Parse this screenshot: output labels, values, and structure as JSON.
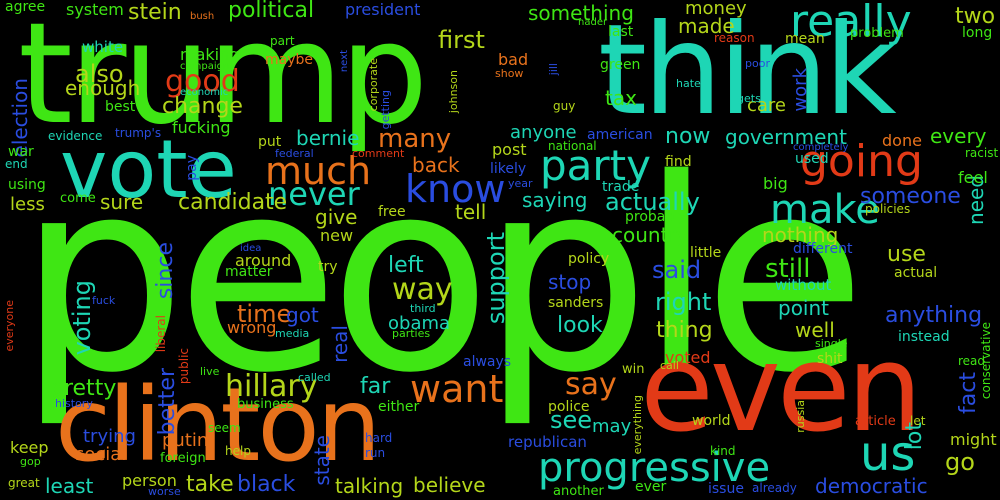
{
  "colors": {
    "background": "#000000",
    "palette": [
      "#3fe614",
      "#1ed6b5",
      "#e8721c",
      "#e23a17",
      "#2a4de0",
      "#b4d61a"
    ]
  },
  "words": [
    {
      "text": "people",
      "color": "#3fe614"
    },
    {
      "text": "trump",
      "color": "#3fe614"
    },
    {
      "text": "think",
      "color": "#1ed6b5"
    },
    {
      "text": "vote",
      "color": "#1ed6b5"
    },
    {
      "text": "even",
      "color": "#e23a17"
    },
    {
      "text": "clinton",
      "color": "#e8721c"
    },
    {
      "text": "progressive",
      "color": "#1ed6b5"
    },
    {
      "text": "party",
      "color": "#1ed6b5"
    },
    {
      "text": "much",
      "color": "#e8721c"
    },
    {
      "text": "never",
      "color": "#1ed6b5"
    },
    {
      "text": "know",
      "color": "#2a4de0"
    },
    {
      "text": "going",
      "color": "#e23a17"
    },
    {
      "text": "really",
      "color": "#1ed6b5"
    },
    {
      "text": "make",
      "color": "#1ed6b5"
    },
    {
      "text": "us",
      "color": "#1ed6b5"
    },
    {
      "text": "want",
      "color": "#e8721c"
    },
    {
      "text": "hillary",
      "color": "#b4d61a"
    },
    {
      "text": "say",
      "color": "#e8721c"
    },
    {
      "text": "first",
      "color": "#b4d61a"
    },
    {
      "text": "political",
      "color": "#3fe614"
    },
    {
      "text": "stein",
      "color": "#b4d61a"
    },
    {
      "text": "also",
      "color": "#b4d61a"
    },
    {
      "text": "good",
      "color": "#e23a17"
    },
    {
      "text": "enough",
      "color": "#b4d61a"
    },
    {
      "text": "change",
      "color": "#b4d61a"
    },
    {
      "text": "fucking",
      "color": "#3fe614"
    },
    {
      "text": "many",
      "color": "#e8721c"
    },
    {
      "text": "bernie",
      "color": "#1ed6b5"
    },
    {
      "text": "candidate",
      "color": "#b4d61a"
    },
    {
      "text": "sure",
      "color": "#b4d61a"
    },
    {
      "text": "since",
      "color": "#2a4de0"
    },
    {
      "text": "voting",
      "color": "#1ed6b5"
    },
    {
      "text": "time",
      "color": "#e8721c"
    },
    {
      "text": "got",
      "color": "#2a4de0"
    },
    {
      "text": "way",
      "color": "#b4d61a"
    },
    {
      "text": "left",
      "color": "#1ed6b5"
    },
    {
      "text": "support",
      "color": "#1ed6b5"
    },
    {
      "text": "actually",
      "color": "#1ed6b5"
    },
    {
      "text": "saying",
      "color": "#1ed6b5"
    },
    {
      "text": "country",
      "color": "#3fe614"
    },
    {
      "text": "said",
      "color": "#2a4de0"
    },
    {
      "text": "stop",
      "color": "#2a4de0"
    },
    {
      "text": "right",
      "color": "#1ed6b5"
    },
    {
      "text": "still",
      "color": "#3fe614"
    },
    {
      "text": "someone",
      "color": "#2a4de0"
    },
    {
      "text": "nothing",
      "color": "#b4d61a"
    },
    {
      "text": "need",
      "color": "#1ed6b5"
    },
    {
      "text": "fact",
      "color": "#2a4de0"
    },
    {
      "text": "anything",
      "color": "#2a4de0"
    },
    {
      "text": "government",
      "color": "#1ed6b5"
    },
    {
      "text": "now",
      "color": "#1ed6b5"
    },
    {
      "text": "something",
      "color": "#3fe614"
    },
    {
      "text": "money",
      "color": "#b4d61a"
    },
    {
      "text": "made",
      "color": "#b4d61a"
    },
    {
      "text": "tax",
      "color": "#3fe614"
    },
    {
      "text": "anyone",
      "color": "#1ed6b5"
    },
    {
      "text": "work",
      "color": "#2a4de0"
    },
    {
      "text": "care",
      "color": "#b4d61a"
    },
    {
      "text": "two",
      "color": "#b4d61a"
    },
    {
      "text": "every",
      "color": "#3fe614"
    },
    {
      "text": "done",
      "color": "#e8721c"
    },
    {
      "text": "pretty",
      "color": "#3fe614"
    },
    {
      "text": "better",
      "color": "#2a4de0"
    },
    {
      "text": "trying",
      "color": "#2a4de0"
    },
    {
      "text": "putin",
      "color": "#e8721c"
    },
    {
      "text": "social",
      "color": "#e8721c"
    },
    {
      "text": "least",
      "color": "#1ed6b5"
    },
    {
      "text": "take",
      "color": "#b4d61a"
    },
    {
      "text": "black",
      "color": "#2a4de0"
    },
    {
      "text": "state",
      "color": "#2a4de0"
    },
    {
      "text": "talking",
      "color": "#b4d61a"
    },
    {
      "text": "believe",
      "color": "#b4d61a"
    },
    {
      "text": "real",
      "color": "#2a4de0"
    },
    {
      "text": "far",
      "color": "#1ed6b5"
    },
    {
      "text": "see",
      "color": "#1ed6b5"
    },
    {
      "text": "may",
      "color": "#1ed6b5"
    },
    {
      "text": "look",
      "color": "#1ed6b5"
    },
    {
      "text": "obama",
      "color": "#1ed6b5"
    },
    {
      "text": "thing",
      "color": "#b4d61a"
    },
    {
      "text": "point",
      "color": "#1ed6b5"
    },
    {
      "text": "well",
      "color": "#b4d61a"
    },
    {
      "text": "use",
      "color": "#b4d61a"
    },
    {
      "text": "lot",
      "color": "#1ed6b5"
    },
    {
      "text": "go",
      "color": "#b4d61a"
    },
    {
      "text": "democratic",
      "color": "#2a4de0"
    },
    {
      "text": "might",
      "color": "#b4d61a"
    },
    {
      "text": "keep",
      "color": "#b4d61a"
    },
    {
      "text": "person",
      "color": "#b4d61a"
    },
    {
      "text": "back",
      "color": "#e8721c"
    },
    {
      "text": "post",
      "color": "#b4d61a"
    },
    {
      "text": "tell",
      "color": "#b4d61a"
    },
    {
      "text": "give",
      "color": "#b4d61a"
    },
    {
      "text": "new",
      "color": "#b4d61a"
    },
    {
      "text": "around",
      "color": "#b4d61a"
    },
    {
      "text": "matter",
      "color": "#3fe614"
    },
    {
      "text": "wrong",
      "color": "#e8721c"
    },
    {
      "text": "election",
      "color": "#2a4de0"
    },
    {
      "text": "less",
      "color": "#b4d61a"
    },
    {
      "text": "using",
      "color": "#3fe614"
    },
    {
      "text": "war",
      "color": "#3fe614"
    },
    {
      "text": "agree",
      "color": "#3fe614"
    },
    {
      "text": "system",
      "color": "#3fe614"
    },
    {
      "text": "white",
      "color": "#1ed6b5"
    },
    {
      "text": "making",
      "color": "#3fe614"
    },
    {
      "text": "best",
      "color": "#3fe614"
    },
    {
      "text": "president",
      "color": "#2a4de0"
    },
    {
      "text": "bad",
      "color": "#e8721c"
    },
    {
      "text": "last",
      "color": "#3fe614"
    },
    {
      "text": "green",
      "color": "#3fe614"
    },
    {
      "text": "mean",
      "color": "#b4d61a"
    },
    {
      "text": "long",
      "color": "#3fe614"
    },
    {
      "text": "problem",
      "color": "#3fe614"
    },
    {
      "text": "feel",
      "color": "#3fe614"
    },
    {
      "text": "used",
      "color": "#1ed6b5"
    },
    {
      "text": "big",
      "color": "#3fe614"
    },
    {
      "text": "find",
      "color": "#b4d61a"
    },
    {
      "text": "american",
      "color": "#2a4de0"
    },
    {
      "text": "trade",
      "color": "#1ed6b5"
    },
    {
      "text": "probably",
      "color": "#3fe614"
    },
    {
      "text": "different",
      "color": "#2a4de0"
    },
    {
      "text": "little",
      "color": "#b4d61a"
    },
    {
      "text": "without",
      "color": "#1ed6b5"
    },
    {
      "text": "actual",
      "color": "#b4d61a"
    },
    {
      "text": "instead",
      "color": "#1ed6b5"
    },
    {
      "text": "policy",
      "color": "#b4d61a"
    },
    {
      "text": "sanders",
      "color": "#b4d61a"
    },
    {
      "text": "free",
      "color": "#b4d61a"
    },
    {
      "text": "try",
      "color": "#b4d61a"
    },
    {
      "text": "pay",
      "color": "#2a4de0"
    },
    {
      "text": "put",
      "color": "#b4d61a"
    },
    {
      "text": "maybe",
      "color": "#e8721c"
    },
    {
      "text": "come",
      "color": "#3fe614"
    },
    {
      "text": "evidence",
      "color": "#1ed6b5"
    },
    {
      "text": "trump's",
      "color": "#2a4de0"
    },
    {
      "text": "end",
      "color": "#1ed6b5"
    },
    {
      "text": "likely",
      "color": "#2a4de0"
    },
    {
      "text": "year",
      "color": "#2a4de0"
    },
    {
      "text": "national",
      "color": "#3fe614"
    },
    {
      "text": "completely",
      "color": "#2a4de0"
    },
    {
      "text": "racist",
      "color": "#3fe614"
    },
    {
      "text": "policies",
      "color": "#b4d61a"
    },
    {
      "text": "voted",
      "color": "#e23a17"
    },
    {
      "text": "call",
      "color": "#b4d61a"
    },
    {
      "text": "win",
      "color": "#b4d61a"
    },
    {
      "text": "always",
      "color": "#2a4de0"
    },
    {
      "text": "police",
      "color": "#b4d61a"
    },
    {
      "text": "world",
      "color": "#b4d61a"
    },
    {
      "text": "republican",
      "color": "#2a4de0"
    },
    {
      "text": "kind",
      "color": "#3fe614"
    },
    {
      "text": "issue",
      "color": "#2a4de0"
    },
    {
      "text": "already",
      "color": "#2a4de0"
    },
    {
      "text": "ever",
      "color": "#3fe614"
    },
    {
      "text": "another",
      "color": "#3fe614"
    },
    {
      "text": "article",
      "color": "#e23a17"
    },
    {
      "text": "let",
      "color": "#b4d61a"
    },
    {
      "text": "read",
      "color": "#3fe614"
    },
    {
      "text": "conservative",
      "color": "#3fe614"
    },
    {
      "text": "shit",
      "color": "#b4d61a"
    },
    {
      "text": "single",
      "color": "#3fe614"
    },
    {
      "text": "business",
      "color": "#3fe614"
    },
    {
      "text": "either",
      "color": "#3fe614"
    },
    {
      "text": "hard",
      "color": "#2a4de0"
    },
    {
      "text": "run",
      "color": "#2a4de0"
    },
    {
      "text": "help",
      "color": "#b4d61a"
    },
    {
      "text": "foreign",
      "color": "#3fe614"
    },
    {
      "text": "seem",
      "color": "#3fe614"
    },
    {
      "text": "worse",
      "color": "#2a4de0"
    },
    {
      "text": "great",
      "color": "#b4d61a"
    },
    {
      "text": "gop",
      "color": "#3fe614"
    },
    {
      "text": "history",
      "color": "#2a4de0"
    },
    {
      "text": "everyone",
      "color": "#e23a17"
    },
    {
      "text": "fuck",
      "color": "#2a4de0"
    },
    {
      "text": "idea",
      "color": "#2a4de0"
    },
    {
      "text": "liberal",
      "color": "#e23a17"
    },
    {
      "text": "public",
      "color": "#e23a17"
    },
    {
      "text": "live",
      "color": "#3fe614"
    },
    {
      "text": "media",
      "color": "#1ed6b5"
    },
    {
      "text": "third",
      "color": "#1ed6b5"
    },
    {
      "text": "parties",
      "color": "#3fe614"
    },
    {
      "text": "called",
      "color": "#1ed6b5"
    },
    {
      "text": "federal",
      "color": "#2a4de0"
    },
    {
      "text": "comment",
      "color": "#e23a17"
    },
    {
      "text": "johnson",
      "color": "#b4d61a"
    },
    {
      "text": "corporate",
      "color": "#b4d61a"
    },
    {
      "text": "getting",
      "color": "#2a4de0"
    },
    {
      "text": "jill",
      "color": "#2a4de0"
    },
    {
      "text": "guy",
      "color": "#b4d61a"
    },
    {
      "text": "show",
      "color": "#e8721c"
    },
    {
      "text": "nader",
      "color": "#3fe614"
    },
    {
      "text": "reason",
      "color": "#e23a17"
    },
    {
      "text": "poor",
      "color": "#2a4de0"
    },
    {
      "text": "hate",
      "color": "#1ed6b5"
    },
    {
      "text": "gets",
      "color": "#1ed6b5"
    },
    {
      "text": "next",
      "color": "#2a4de0"
    },
    {
      "text": "campaign",
      "color": "#3fe614"
    },
    {
      "text": "economic",
      "color": "#1ed6b5"
    },
    {
      "text": "bush",
      "color": "#e8721c"
    },
    {
      "text": "part",
      "color": "#3fe614"
    },
    {
      "text": "russia",
      "color": "#b4d61a"
    },
    {
      "text": "everything",
      "color": "#b4d61a"
    }
  ]
}
